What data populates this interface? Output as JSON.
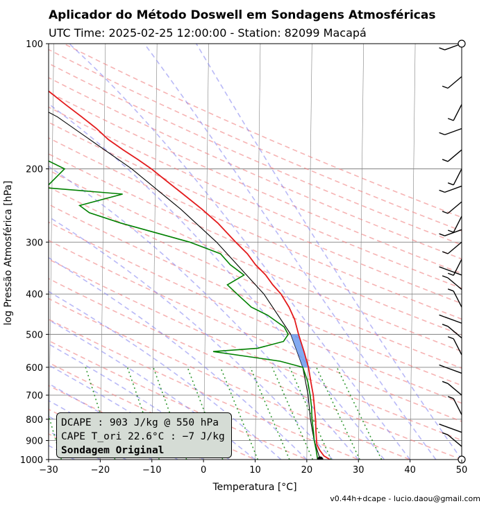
{
  "header": {
    "title": "Aplicador do Método Doswell em Sondagens Atmosféricas",
    "subtitle": "UTC Time: 2025-02-25 12:00:00 - Station: 82099 Macapá"
  },
  "footer": {
    "text": "v0.44h+dcape  -  lucio.daou@gmail.com"
  },
  "info_box": {
    "line1": "DCAPE : 903 J/kg @ 550 hPa",
    "line2": "CAPE T_ori 22.6°C : −7 J/kg",
    "line3": "Sondagem Original"
  },
  "colors": {
    "temperature": "#e31a1c",
    "dewpoint": "#008000",
    "parcel": "#000000",
    "dry_adiabat": "#f08080",
    "moist_adiabat": "#8080f0",
    "mixing_ratio": "#008000",
    "isotherm": "#808080",
    "cape_fill": "#6495ed",
    "info_box_bg": "#d5dcd5"
  },
  "chart_data": {
    "type": "skew-t log-p",
    "xlabel": "Temperatura [°C]",
    "ylabel": "log Pressão Atmosférica [hPa]",
    "xlim": [
      -30,
      50
    ],
    "ylim": [
      1000,
      100
    ],
    "x_scale": "linear (skewed isotherms)",
    "y_scale": "log",
    "x_ticks": [
      -30,
      -20,
      -10,
      0,
      10,
      20,
      30,
      40,
      50
    ],
    "y_ticks": [
      100,
      200,
      300,
      400,
      500,
      600,
      700,
      800,
      900,
      1000
    ],
    "grid": "horizontal pressure lines and skewed isotherms",
    "series": [
      {
        "key": "temperature",
        "points": [
          [
            1000,
            24.5
          ],
          [
            980,
            23.3
          ],
          [
            950,
            22.5
          ],
          [
            920,
            21.9
          ],
          [
            850,
            21.7
          ],
          [
            800,
            21.6
          ],
          [
            700,
            21.1
          ],
          [
            650,
            20.6
          ],
          [
            600,
            20.1
          ],
          [
            550,
            19.2
          ],
          [
            500,
            18.1
          ],
          [
            460,
            17.3
          ],
          [
            430,
            16.2
          ],
          [
            400,
            14.6
          ],
          [
            380,
            13.0
          ],
          [
            360,
            11.6
          ],
          [
            340,
            9.6
          ],
          [
            320,
            8.0
          ],
          [
            300,
            5.7
          ],
          [
            270,
            2.2
          ],
          [
            250,
            -0.9
          ],
          [
            230,
            -4.6
          ],
          [
            215,
            -7.6
          ],
          [
            200,
            -10.8
          ],
          [
            190,
            -13.4
          ],
          [
            180,
            -16.3
          ],
          [
            170,
            -19.2
          ],
          [
            160,
            -21.5
          ],
          [
            150,
            -24.4
          ],
          [
            140,
            -27.6
          ],
          [
            130,
            -30.9
          ],
          [
            120,
            -35.2
          ],
          [
            110,
            -38.2
          ],
          [
            100,
            -42.3
          ]
        ]
      },
      {
        "key": "dewpoint",
        "points": [
          [
            1000,
            22.1
          ],
          [
            950,
            21.8
          ],
          [
            900,
            21.4
          ],
          [
            850,
            21.2
          ],
          [
            800,
            20.9
          ],
          [
            750,
            20.8
          ],
          [
            700,
            20.5
          ],
          [
            650,
            20.0
          ],
          [
            600,
            19.0
          ],
          [
            580,
            14.6
          ],
          [
            550,
            1.6
          ],
          [
            540,
            10.2
          ],
          [
            520,
            15.2
          ],
          [
            500,
            16.1
          ],
          [
            480,
            15.3
          ],
          [
            450,
            12.1
          ],
          [
            430,
            8.9
          ],
          [
            400,
            6.1
          ],
          [
            380,
            4.2
          ],
          [
            360,
            7.4
          ],
          [
            340,
            4.7
          ],
          [
            320,
            2.8
          ],
          [
            300,
            -3.2
          ],
          [
            270,
            -16.6
          ],
          [
            255,
            -22.7
          ],
          [
            245,
            -24.6
          ],
          [
            230,
            -16.3
          ],
          [
            222,
            -31.2
          ],
          [
            200,
            -27.6
          ],
          [
            185,
            -33.2
          ],
          [
            180,
            -35.8
          ],
          [
            170,
            -37.6
          ],
          [
            160,
            -41.9
          ],
          [
            150,
            -46.3
          ],
          [
            140,
            -44.3
          ],
          [
            130,
            -49.8
          ],
          [
            115,
            -57.5
          ],
          [
            100,
            -62.6
          ]
        ]
      },
      {
        "key": "parcel",
        "points": [
          [
            1000,
            22.6
          ],
          [
            950,
            22.0
          ],
          [
            900,
            21.4
          ],
          [
            850,
            21.0
          ],
          [
            800,
            20.6
          ],
          [
            700,
            20.1
          ],
          [
            600,
            19.0
          ],
          [
            500,
            16.6
          ],
          [
            400,
            11.3
          ],
          [
            300,
            2.0
          ],
          [
            250,
            -5.0
          ],
          [
            200,
            -14.6
          ],
          [
            150,
            -29.1
          ],
          [
            100,
            -56.1
          ]
        ]
      }
    ],
    "wind_barbs_side": "right"
  }
}
